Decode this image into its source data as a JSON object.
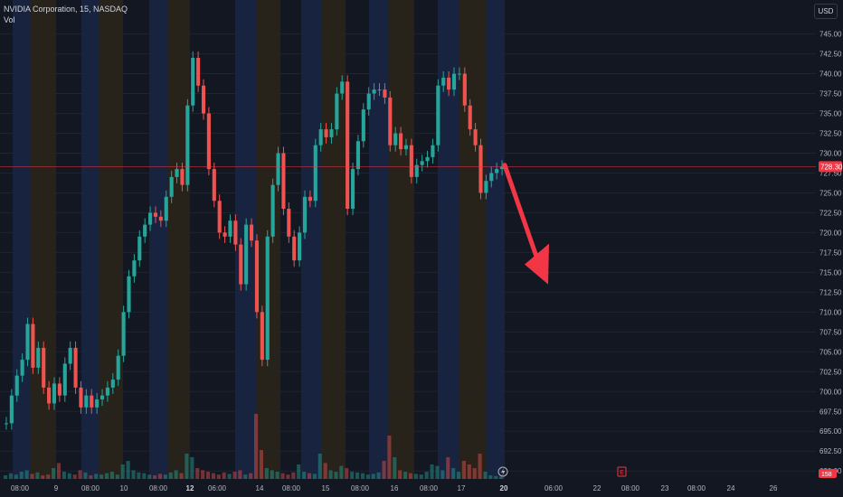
{
  "legend": {
    "symbol_line": "NVIDIA Corporation, 15, NASDAQ",
    "volume_label": "Vol"
  },
  "currency_button": "USD",
  "colors": {
    "background": "#131722",
    "up": "#26a69a",
    "down": "#ef5350",
    "price_line": "#f23645",
    "arrow": "#f23645",
    "session_blue": "#1a2642",
    "session_orange": "#2a2519",
    "axis_text": "#b2b5be"
  },
  "icons": {
    "dividend_marker": "lightning-icon",
    "earnings_marker": "E",
    "forecast_arrow": "down-arrow-icon"
  },
  "chart_data": {
    "type": "candlestick",
    "symbol": "NVIDIA Corporation",
    "interval": "15",
    "exchange": "NASDAQ",
    "ylim": [
      689,
      747
    ],
    "y_ticks": [
      "745.00",
      "742.50",
      "740.00",
      "737.50",
      "735.00",
      "732.50",
      "730.00",
      "727.50",
      "725.00",
      "722.50",
      "720.00",
      "717.50",
      "715.00",
      "712.50",
      "710.00",
      "707.50",
      "705.00",
      "702.50",
      "700.00",
      "697.50",
      "695.00",
      "692.50",
      "690.00"
    ],
    "current_price_label": "728.30",
    "current_price": 728.3,
    "volume_badge": "158",
    "x_labels": [
      "08:00",
      "9",
      "08:00",
      "10",
      "08:00",
      "12",
      "06:00",
      "14",
      "08:00",
      "15",
      "08:00",
      "16",
      "08:00",
      "17",
      "20",
      "06:00",
      "22",
      "08:00",
      "23",
      "08:00",
      "24",
      "26"
    ],
    "x_label_bold": [
      "12",
      "20"
    ],
    "forecast_arrow": {
      "from_price": 728.5,
      "to_price": 713.5
    },
    "price_path": [
      [
        0,
        696.0
      ],
      [
        1,
        699.5
      ],
      [
        2,
        702.0
      ],
      [
        3,
        704.0
      ],
      [
        4,
        708.5
      ],
      [
        5,
        703.0
      ],
      [
        6,
        705.5
      ],
      [
        7,
        700.5
      ],
      [
        8,
        698.5
      ],
      [
        9,
        701.0
      ],
      [
        10,
        699.5
      ],
      [
        11,
        703.5
      ],
      [
        12,
        705.5
      ],
      [
        13,
        700.5
      ],
      [
        14,
        698.0
      ],
      [
        15,
        699.5
      ],
      [
        16,
        698.0
      ],
      [
        17,
        699.0
      ],
      [
        18,
        699.5
      ],
      [
        19,
        700.5
      ],
      [
        20,
        701.5
      ],
      [
        21,
        704.5
      ],
      [
        22,
        710.0
      ],
      [
        23,
        714.5
      ],
      [
        24,
        716.5
      ],
      [
        25,
        719.5
      ],
      [
        26,
        721.0
      ],
      [
        27,
        722.5
      ],
      [
        28,
        722.0
      ],
      [
        29,
        721.5
      ],
      [
        30,
        724.5
      ],
      [
        31,
        727.0
      ],
      [
        32,
        728.0
      ],
      [
        33,
        726.0
      ],
      [
        34,
        736.0
      ],
      [
        35,
        742.0
      ],
      [
        36,
        738.5
      ],
      [
        37,
        735.0
      ],
      [
        38,
        728.0
      ],
      [
        39,
        724.0
      ],
      [
        40,
        720.0
      ],
      [
        41,
        719.5
      ],
      [
        42,
        721.5
      ],
      [
        43,
        718.5
      ],
      [
        44,
        713.5
      ],
      [
        45,
        721.0
      ],
      [
        46,
        719.0
      ],
      [
        47,
        710.0
      ],
      [
        48,
        704.0
      ],
      [
        49,
        719.5
      ],
      [
        50,
        726.0
      ],
      [
        51,
        730.0
      ],
      [
        52,
        723.0
      ],
      [
        53,
        719.5
      ],
      [
        54,
        716.5
      ],
      [
        55,
        720.0
      ],
      [
        56,
        724.5
      ],
      [
        57,
        724.0
      ],
      [
        58,
        731.0
      ],
      [
        59,
        733.0
      ],
      [
        60,
        732.0
      ],
      [
        61,
        733.0
      ],
      [
        62,
        737.5
      ],
      [
        63,
        739.0
      ],
      [
        64,
        723.0
      ],
      [
        65,
        728.0
      ],
      [
        66,
        731.5
      ],
      [
        67,
        735.5
      ],
      [
        68,
        737.5
      ],
      [
        69,
        738.0
      ],
      [
        70,
        738.0
      ],
      [
        71,
        737.0
      ],
      [
        72,
        731.0
      ],
      [
        73,
        732.5
      ],
      [
        74,
        730.5
      ],
      [
        75,
        731.0
      ],
      [
        76,
        727.0
      ],
      [
        77,
        728.5
      ],
      [
        78,
        729.0
      ],
      [
        79,
        729.5
      ],
      [
        80,
        731.0
      ],
      [
        81,
        738.5
      ],
      [
        82,
        739.5
      ],
      [
        83,
        738.0
      ],
      [
        84,
        740.0
      ],
      [
        85,
        740.0
      ],
      [
        86,
        736.0
      ],
      [
        87,
        733.0
      ],
      [
        88,
        731.0
      ],
      [
        89,
        725.0
      ],
      [
        90,
        726.5
      ],
      [
        91,
        727.5
      ],
      [
        92,
        728.0
      ],
      [
        93,
        728.3
      ]
    ],
    "volume_heights": [
      0.05,
      0.08,
      0.06,
      0.1,
      0.12,
      0.07,
      0.09,
      0.05,
      0.06,
      0.15,
      0.22,
      0.1,
      0.08,
      0.06,
      0.12,
      0.09,
      0.05,
      0.07,
      0.06,
      0.08,
      0.1,
      0.06,
      0.2,
      0.25,
      0.12,
      0.09,
      0.08,
      0.06,
      0.05,
      0.07,
      0.06,
      0.09,
      0.12,
      0.08,
      0.35,
      0.3,
      0.15,
      0.12,
      0.1,
      0.08,
      0.06,
      0.09,
      0.07,
      0.1,
      0.12,
      0.06,
      0.08,
      0.9,
      0.4,
      0.15,
      0.12,
      0.1,
      0.08,
      0.06,
      0.09,
      0.2,
      0.1,
      0.08,
      0.07,
      0.35,
      0.22,
      0.12,
      0.1,
      0.18,
      0.15,
      0.1,
      0.09,
      0.08,
      0.06,
      0.07,
      0.09,
      0.25,
      0.6,
      0.3,
      0.12,
      0.1,
      0.08,
      0.07,
      0.06,
      0.1,
      0.2,
      0.18,
      0.12,
      0.3,
      0.15,
      0.1,
      0.25,
      0.2,
      0.15,
      0.35,
      0.1,
      0.05,
      0.04,
      0.03
    ]
  }
}
